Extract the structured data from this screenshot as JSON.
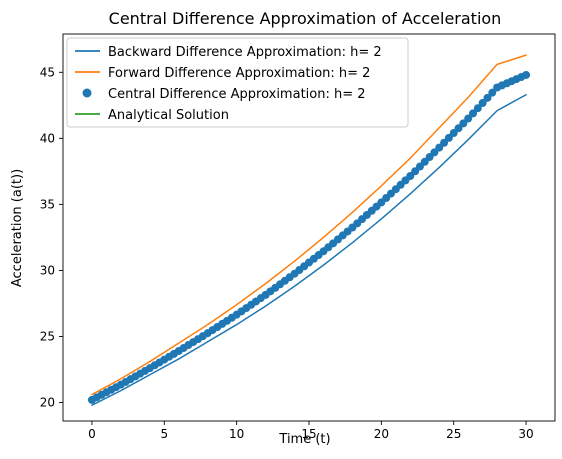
{
  "chart_data": {
    "type": "line",
    "title": "Central Difference Approximation of Acceleration",
    "xlabel": "Time (t)",
    "ylabel": "Acceleration (a(t))",
    "xlim": [
      -2,
      32
    ],
    "ylim": [
      18.6,
      47.9
    ],
    "xticks": [
      0,
      5,
      10,
      15,
      20,
      25,
      30
    ],
    "yticks": [
      20,
      25,
      30,
      35,
      40,
      45
    ],
    "grid": false,
    "legend_position": "top-left",
    "x": [
      0,
      2,
      4,
      6,
      8,
      10,
      12,
      14,
      16,
      18,
      20,
      22,
      24,
      26,
      28,
      30
    ],
    "series": [
      {
        "name": "Backward Difference Approximation: h= 2",
        "kind": "line",
        "color": "#1f77b4",
        "values": [
          19.8,
          20.9,
          22.1,
          23.3,
          24.6,
          25.9,
          27.3,
          28.8,
          30.4,
          32.1,
          33.9,
          35.8,
          37.8,
          39.9,
          42.1,
          43.3
        ]
      },
      {
        "name": "Forward Difference Approximation: h= 2",
        "kind": "line",
        "color": "#ff7f0e",
        "values": [
          20.6,
          21.8,
          23.1,
          24.5,
          25.9,
          27.4,
          29.0,
          30.7,
          32.5,
          34.4,
          36.4,
          38.5,
          40.8,
          43.1,
          45.6,
          46.3
        ]
      },
      {
        "name": "Central Difference Approximation: h= 2",
        "kind": "scatter",
        "color": "#1f77b4",
        "values": [
          20.2,
          21.35,
          22.6,
          23.9,
          25.25,
          26.65,
          28.15,
          29.75,
          31.45,
          33.25,
          35.15,
          37.15,
          39.3,
          41.5,
          43.85,
          44.8
        ]
      },
      {
        "name": "Analytical Solution",
        "kind": "line",
        "color": "#2ca02c",
        "values": [
          20.2,
          21.35,
          22.6,
          23.9,
          25.25,
          26.65,
          28.15,
          29.75,
          31.45,
          33.25,
          35.15,
          37.15,
          39.3,
          41.5,
          43.85,
          44.8
        ]
      }
    ]
  }
}
